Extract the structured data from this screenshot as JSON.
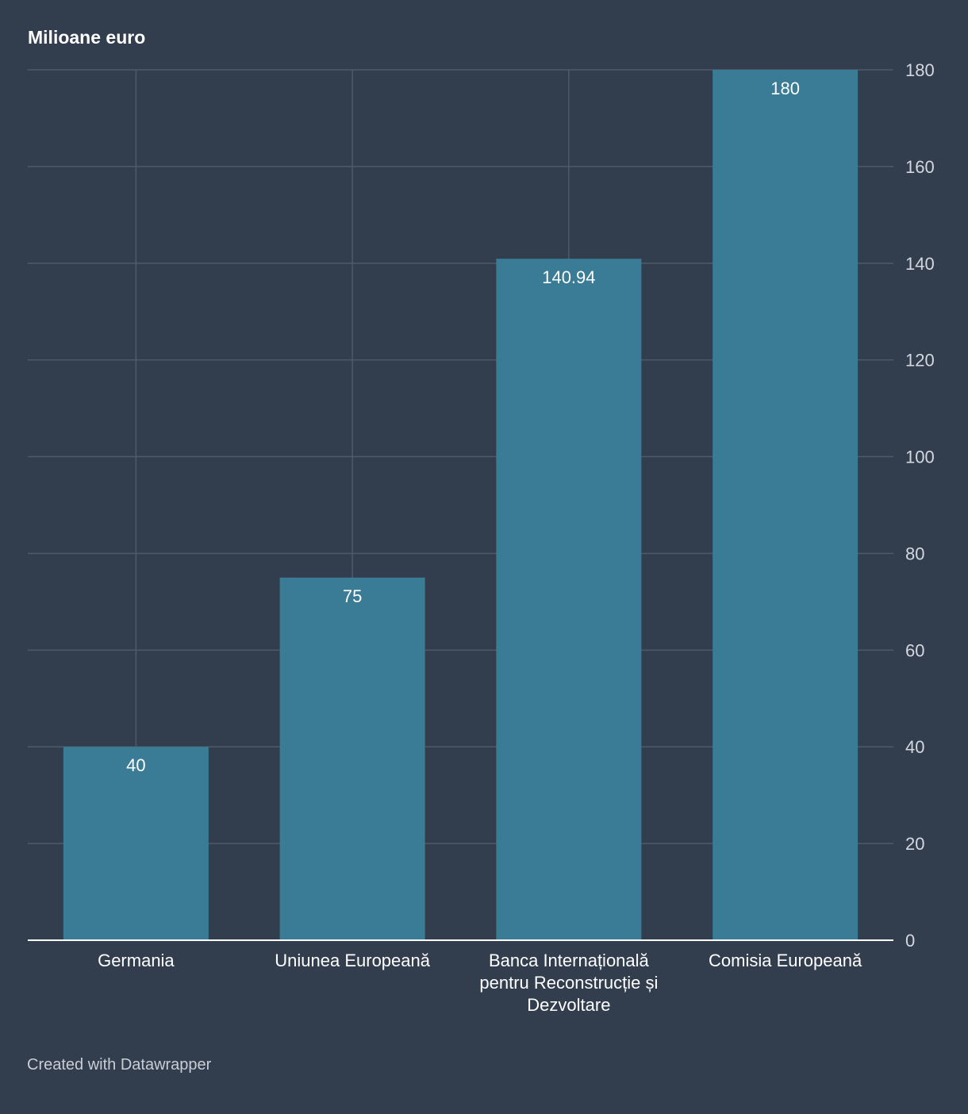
{
  "chart_data": {
    "type": "bar",
    "title": "Milioane euro",
    "categories": [
      [
        "Germania"
      ],
      [
        "Uniunea Europeană"
      ],
      [
        "Banca Internațională",
        "pentru Reconstrucție și",
        "Dezvoltare"
      ],
      [
        "Comisia Europeană"
      ]
    ],
    "values": [
      40,
      75,
      140.94,
      180
    ],
    "value_labels": [
      "40",
      "75",
      "140.94",
      "180"
    ],
    "ylim": [
      0,
      180
    ],
    "yticks": [
      0,
      20,
      40,
      60,
      80,
      100,
      120,
      140,
      160,
      180
    ],
    "y_axis_position": "right",
    "grid": true,
    "legend": "none"
  },
  "colors": {
    "background": "#323d4e",
    "bar": "#3a7b96",
    "grid": "#4f5a6a",
    "baseline": "#ffffff",
    "text": "#ffffff",
    "tick_text": "#d3d8df",
    "footer_text": "#c9ced6"
  },
  "footer": {
    "credit": "Created with Datawrapper"
  }
}
